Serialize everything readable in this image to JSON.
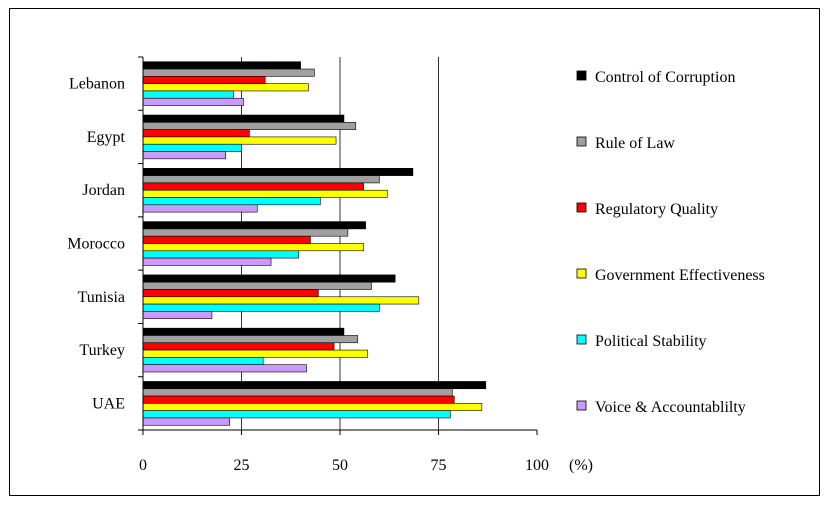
{
  "chart_data": {
    "type": "bar",
    "orientation": "horizontal",
    "categories": [
      "Lebanon",
      "Egypt",
      "Jordan",
      "Morocco",
      "Tunisia",
      "Turkey",
      "UAE"
    ],
    "series": [
      {
        "name": "Control of Corruption",
        "color": "#000000",
        "values": [
          40,
          51,
          68.5,
          56.5,
          64,
          51,
          87
        ]
      },
      {
        "name": "Rule of Law",
        "color": "#a0a0a0",
        "values": [
          43.5,
          54,
          60,
          52,
          58,
          54.5,
          78.5
        ]
      },
      {
        "name": "Regulatory Quality",
        "color": "#ff0000",
        "values": [
          31,
          27,
          56,
          42.5,
          44.5,
          48.5,
          79
        ]
      },
      {
        "name": "Government Effectiveness",
        "color": "#ffff00",
        "values": [
          42,
          49,
          62,
          56,
          70,
          57,
          86
        ]
      },
      {
        "name": "Political Stability",
        "color": "#00ffff",
        "values": [
          23,
          25,
          45,
          39.5,
          60,
          30.5,
          78
        ]
      },
      {
        "name": "Voice & Accountablilty",
        "color": "#cc99ff",
        "values": [
          25.5,
          21,
          29,
          32.5,
          17.5,
          41.5,
          22
        ]
      }
    ],
    "xlim": [
      0,
      100
    ],
    "xticks": [
      "0",
      "25",
      "50",
      "75",
      "100"
    ],
    "unit_label": "(%)",
    "legend_position": "right",
    "grid": "vertical major gridlines"
  }
}
